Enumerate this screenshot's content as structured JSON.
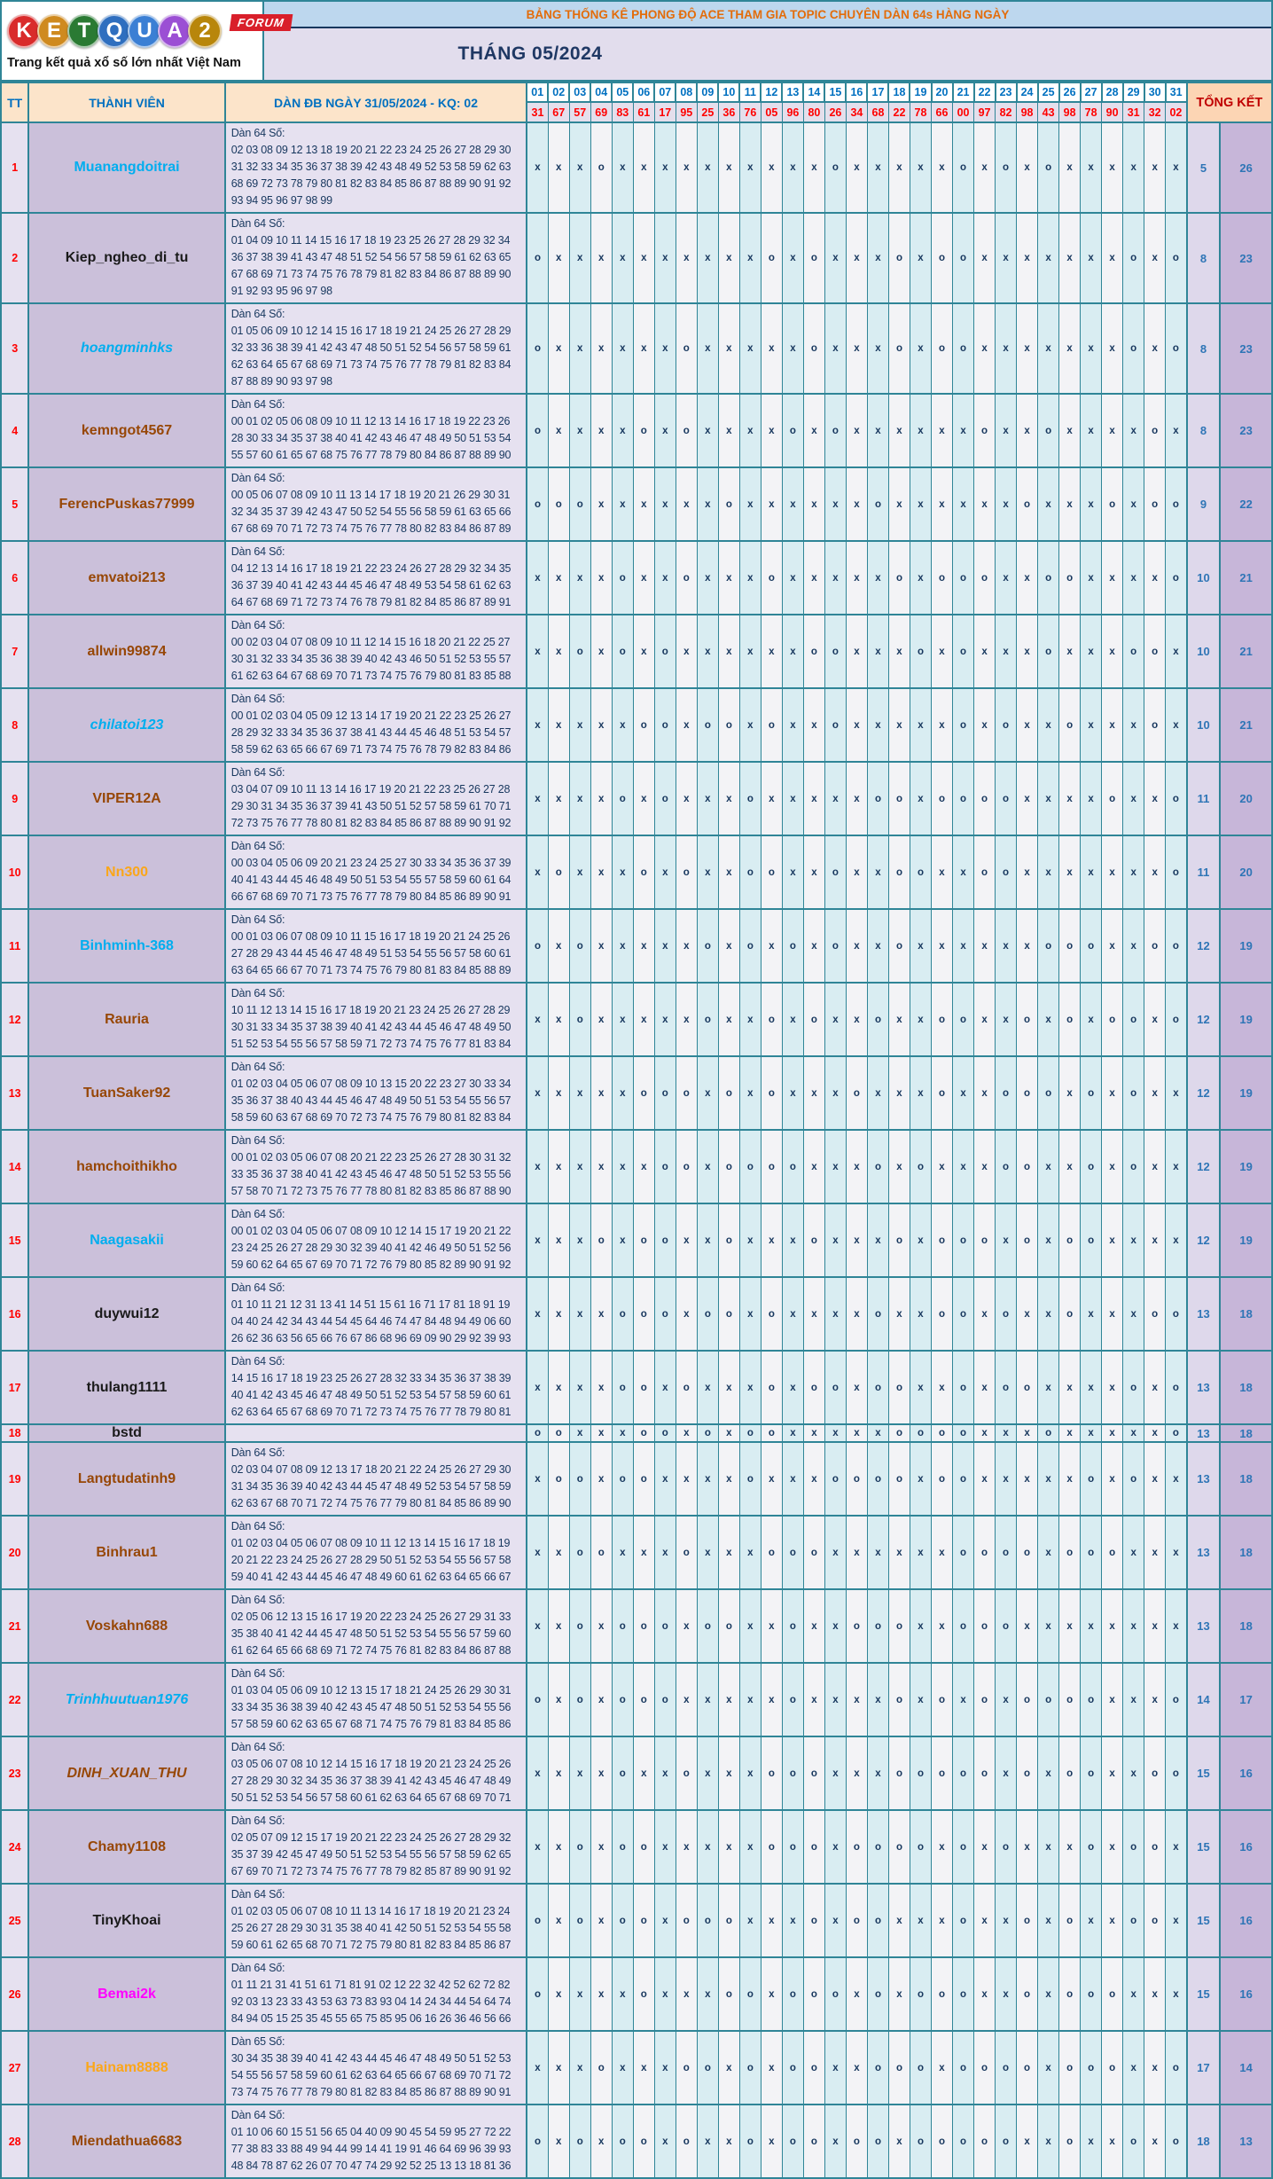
{
  "logo": {
    "letters": [
      "K",
      "E",
      "T",
      "Q",
      "U",
      "A",
      "2"
    ],
    "letter_colors": [
      "#d92b2b",
      "#cf8a1f",
      "#2a7a33",
      "#2f6fbf",
      "#3b7fd4",
      "#9b4fd4",
      "#b8860b"
    ],
    "forum_badge": "FORUM",
    "tagline": "Trang kết quả xổ số lớn nhất Việt Nam"
  },
  "header": {
    "banner": "BẢNG THỐNG KÊ PHONG ĐỘ ACE THAM GIA TOPIC CHUYÊN DÀN 64s HÀNG NGÀY",
    "month_title": "THÁNG 05/2024"
  },
  "columns": {
    "tt": "TT",
    "member": "THÀNH VIÊN",
    "dan": "DÀN ĐB NGÀY 31/05/2024 - KQ: 02",
    "total": "TỔNG KẾT"
  },
  "days": [
    "01",
    "02",
    "03",
    "04",
    "05",
    "06",
    "07",
    "08",
    "09",
    "10",
    "11",
    "12",
    "13",
    "14",
    "15",
    "16",
    "17",
    "18",
    "19",
    "20",
    "21",
    "22",
    "23",
    "24",
    "25",
    "26",
    "27",
    "28",
    "29",
    "30",
    "31"
  ],
  "results": [
    "31",
    "67",
    "57",
    "69",
    "83",
    "61",
    "17",
    "95",
    "25",
    "36",
    "76",
    "05",
    "96",
    "80",
    "26",
    "34",
    "68",
    "22",
    "78",
    "66",
    "00",
    "97",
    "82",
    "98",
    "43",
    "98",
    "78",
    "90",
    "31",
    "32",
    "02"
  ],
  "rows": [
    {
      "tt": "1",
      "member": "Muanangdoitrai",
      "style": "blue",
      "numbers": "Dàn 64 Số:\n02 03 08 09 12 13 18 19 20 21 22 23 24 25 26 27 28 29 30\n31 32 33 34 35 36 37 38 39 42 43 48 49 52 53 58 59 62 63\n68 69 72 73 78 79 80 81 82 83 84 85 86 87 88 89 90 91 92\n93 94 95 96 97 98 99",
      "marks": "xxxoxxxxxxxxxxoxxxxxoxoxoxxxxxx",
      "o": "5",
      "x": "26"
    },
    {
      "tt": "2",
      "member": "Kiep_ngheo_di_tu",
      "style": "black",
      "numbers": "Dàn 64 Số:\n01 04 09 10 11 14 15 16 17 18 19 23 25 26 27 28 29 32 34\n36 37 38 39 41 43 47 48 51 52 54 56 57 58 59 61 62 63 65\n67 68 69 71 73 74 75 76 78 79 81 82 83 84 86 87 88 89 90\n91 92 93 95 96 97 98",
      "marks": "oxxxxxxxxxxoxoxxxoxooxxxxxxxoxo",
      "o": "8",
      "x": "23"
    },
    {
      "tt": "3",
      "member": "hoangminhks",
      "style": "blue-italic",
      "numbers": "Dàn 64 Số:\n01 05 06 09 10 12 14 15 16 17 18 19 21 24 25 26 27 28 29\n32 33 36 38 39 41 42 43 47 48 50 51 52 54 56 57 58 59 61\n62 63 64 65 67 68 69 71 73 74 75 76 77 78 79 81 82 83 84\n87 88 89 90 93 97 98",
      "marks": "oxxxxxxoxxxxxoxxxoxooxxxxxxxoxo",
      "o": "8",
      "x": "23"
    },
    {
      "tt": "4",
      "member": "kemngot4567",
      "style": "brown",
      "numbers": "Dàn 64 Số:\n00 01 02 05 06 08 09 10 11 12 13 14 16 17 18 19 22 23 26\n28 30 33 34 35 37 38 40 41 42 43 46 47 48 49 50 51 53 54\n55 57 60 61 65 67 68 75 76 77 78 79 80 84 86 87 88 89 90",
      "marks": "oxxxxoxoxxxxoxoxxxxxxoxxoxxxxox",
      "o": "8",
      "x": "23"
    },
    {
      "tt": "5",
      "member": "FerencPuskas77999",
      "style": "brown",
      "numbers": "Dàn 64 Số:\n00 05 06 07 08 09 10 11 13 14 17 18 19 20 21 26 29 30 31\n32 34 35 37 39 42 43 47 50 52 54 55 56 58 59 61 63 65 66\n67 68 69 70 71 72 73 74 75 76 77 78 80 82 83 84 86 87 89",
      "marks": "oooxxxxxxoxxxxxxoxxxxxxoxxxoxoo",
      "o": "9",
      "x": "22"
    },
    {
      "tt": "6",
      "member": "emvatoi213",
      "style": "brown",
      "numbers": "Dàn 64 Số:\n04 12 13 14 16 17 18 19 21 22 23 24 26 27 28 29 32 34 35\n36 37 39 40 41 42 43 44 45 46 47 48 49 53 54 58 61 62 63\n64 67 68 69 71 72 73 74 76 78 79 81 82 84 85 86 87 89 91",
      "marks": "xxxxoxxoxxxoxxxxxoxoooxxooxxxxo",
      "o": "10",
      "x": "21"
    },
    {
      "tt": "7",
      "member": "allwin99874",
      "style": "brown",
      "numbers": "Dàn 64 Số:\n00 02 03 04 07 08 09 10 11 12 14 15 16 18 20 21 22 25 27\n30 31 32 33 34 35 36 38 39 40 42 43 46 50 51 52 53 55 57\n61 62 63 64 67 68 69 70 71 73 74 75 76 79 80 81 83 85 88",
      "marks": "xxoxoxoxxxxxxooxxxoxoxxxoxxxoox",
      "o": "10",
      "x": "21"
    },
    {
      "tt": "8",
      "member": "chilatoi123",
      "style": "blue-italic",
      "numbers": "Dàn 64 Số:\n00 01 02 03 04 05 09 12 13 14 17 19 20 21 22 23 25 26 27\n28 29 32 33 34 35 36 37 38 41 43 44 45 46 48 51 53 54 57\n58 59 62 63 65 66 67 69 71 73 74 75 76 78 79 82 83 84 86",
      "marks": "xxxxxooxooxoxxoxxxxxoxoxxoxxxox",
      "o": "10",
      "x": "21"
    },
    {
      "tt": "9",
      "member": "VIPER12A",
      "style": "brown",
      "numbers": "Dàn 64 Số:\n03 04 07 09 10 11 13 14 16 17 19 20 21 22 23 25 26 27 28\n29 30 31 34 35 36 37 39 41 43 50 51 52 57 58 59 61 70 71\n72 73 75 76 77 78 80 81 82 83 84 85 86 87 88 89 90 91 92",
      "marks": "xxxxoxoxxxoxxxxxooxooooxxxxoxxo",
      "o": "11",
      "x": "20"
    },
    {
      "tt": "10",
      "member": "Nn300",
      "style": "orange",
      "numbers": "Dàn 64 Số:\n00 03 04 05 06 09 20 21 23 24 25 27 30 33 34 35 36 37 39\n40 41 43 44 45 46 48 49 50 51 53 54 55 57 58 59 60 61 64\n66 67 68 69 70 71 73 75 76 77 78 79 80 84 85 86 89 90 91",
      "marks": "xoxxxoxoxxooxxoxxooxxooxxxxxxxo",
      "o": "11",
      "x": "20"
    },
    {
      "tt": "11",
      "member": "Binhminh-368",
      "style": "blue",
      "numbers": "Dàn 64 Số:\n00 01 03 06 07 08 09 10 11 15 16 17 18 19 20 21 24 25 26\n27 28 29 43 44 45 46 47 48 49 51 53 54 55 56 57 58 60 61\n63 64 65 66 67 70 71 73 74 75 76 79 80 81 83 84 85 88 89",
      "marks": "oxoxxxxxoxoxoxoxxoxxxxxxoooxxoo",
      "o": "12",
      "x": "19"
    },
    {
      "tt": "12",
      "member": "Rauria",
      "style": "brown",
      "numbers": "Dàn 64 Số:\n10 11 12 13 14 15 16 17 18 19 20 21 23 24 25 26 27 28 29\n30 31 33 34 35 37 38 39 40 41 42 43 44 45 46 47 48 49 50\n51 52 53 54 55 56 57 58 59 71 72 73 74 75 76 77 81 83 84",
      "marks": "xxoxxxxxoxxoxoxxoxxooxxoxoxooxo",
      "o": "12",
      "x": "19"
    },
    {
      "tt": "13",
      "member": "TuanSaker92",
      "style": "brown",
      "numbers": "Dàn 64 Số:\n01 02 03 04 05 06 07 08 09 10 13 15 20 22 23 27 30 33 34\n35 36 37 38 40 43 44 45 46 47 48 49 50 51 53 54 55 56 57\n58 59 60 63 67 68 69 70 72 73 74 75 76 79 80 81 82 83 84",
      "marks": "xxxxxoooxoxoxxxoxxxoxxoooxoxoxx",
      "o": "12",
      "x": "19"
    },
    {
      "tt": "14",
      "member": "hamchoithikho",
      "style": "brown",
      "numbers": "Dàn 64 Số:\n00 01 02 03 05 06 07 08 20 21 22 23 25 26 27 28 30 31 32\n33 35 36 37 38 40 41 42 43 45 46 47 48 50 51 52 53 55 56\n57 58 70 71 72 73 75 76 77 78 80 81 82 83 85 86 87 88 90",
      "marks": "xxxxxxooxooooxxxoxoxxxooxxoxoxx",
      "o": "12",
      "x": "19"
    },
    {
      "tt": "15",
      "member": "Naagasakii",
      "style": "blue",
      "numbers": "Dàn 64 Số:\n00 01 02 03 04 05 06 07 08 09 10 12 14 15 17 19 20 21 22\n23 24 25 26 27 28 29 30 32 39 40 41 42 46 49 50 51 52 56\n59 60 62 64 65 67 69 70 71 72 76 79 80 85 82 89 90 91 92",
      "marks": "xxxoxooxxoxxxoxxxoxoooxoxooxxxx",
      "o": "12",
      "x": "19"
    },
    {
      "tt": "16",
      "member": "duywui12",
      "style": "black",
      "numbers": "Dàn 64 Số:\n01 10 11 21 12 31 13 41 14 51 15 61 16 71 17 81 18 91 19\n04 40 24 42 34 43 44 54 45 64 46 74 47 84 48 94 49 06 60\n26 62 36 63 56 65 66 76 67 86 68 96 69 09 90 29 92 39 93",
      "marks": "xxxxoooxooxoxxxxoxxooxoxxoxxxoo",
      "o": "13",
      "x": "18"
    },
    {
      "tt": "17",
      "member": "thulang1111",
      "style": "black",
      "numbers": "Dàn 64 Số:\n14 15 16 17 18 19 23 25 26 27 28 32 33 34 35 36 37 38 39\n40 41 42 43 45 46 47 48 49 50 51 52 53 54 57 58 59 60 61\n62 63 64 65 67 68 69 70 71 72 73 74 75 76 77 78 79 80 81",
      "marks": "xxxxooxoxxxoxooxooxxoxooxxxxoxo",
      "o": "13",
      "x": "18"
    },
    {
      "tt": "18",
      "member": "bstd",
      "style": "black",
      "numbers": "",
      "marks": "ooxxxooxoxooxxxxxooooxxxoxxxxxo",
      "o": "13",
      "x": "18"
    },
    {
      "tt": "19",
      "member": "Langtudatinh9",
      "style": "brown",
      "numbers": "Dàn 64 Số:\n02 03 04 07 08 09 12 13 17 18 20 21 22 24 25 26 27 29 30\n31 34 35 36 39 40 42 43 44 45 47 48 49 52 53 54 57 58 59\n62 63 67 68 70 71 72 74 75 76 77 79 80 81 84 85 86 89 90",
      "marks": "xooxooxxxxoxxxooooxooxxxxxoxoxx",
      "o": "13",
      "x": "18"
    },
    {
      "tt": "20",
      "member": "Binhrau1",
      "style": "brown",
      "numbers": "Dàn 64 Số:\n01 02 03 04 05 06 07 08 09 10 11 12 13 14 15 16 17 18 19\n20 21 22 23 24 25 26 27 28 29 50 51 52 53 54 55 56 57 58\n59 40 41 42 43 44 45 46 47 48 49 60 61 62 63 64 65 66 67",
      "marks": "xxooxxxoxxxoooxxxxxxooooxoooxxx",
      "o": "13",
      "x": "18"
    },
    {
      "tt": "21",
      "member": "Voskahn688",
      "style": "brown",
      "numbers": "Dàn 64 Số:\n02 05 06 12 13 15 16 17 19 20 22 23 24 25 26 27 29 31 33\n35 38 40 41 42 44 45 47 48 50 51 52 53 54 55 56 57 59 60\n61 62 64 65 66 68 69 71 72 74 75 76 81 82 83 84 86 87 88",
      "marks": "xxoxoooxooxxoxxoooxxoooxxxxxxxx",
      "o": "13",
      "x": "18"
    },
    {
      "tt": "22",
      "member": "Trinhhuutuan1976",
      "style": "blue-italic",
      "numbers": "Dàn 64 Số:\n01 03 04 05 06 09 10 12 13 15 17 18 21 24 25 26 29 30 31\n33 34 35 36 38 39 40 42 43 45 47 48 50 51 52 53 54 55 56\n57 58 59 60 62 63 65 67 68 71 74 75 76 79 81 83 84 85 86",
      "marks": "oxoxoooxxxxxoxxxxoxoxoxooooxxxo",
      "o": "14",
      "x": "17"
    },
    {
      "tt": "23",
      "member": "DINH_XUAN_THU",
      "style": "brown-italic",
      "numbers": "Dàn 64 Số:\n03 05 06 07 08 10 12 14 15 16 17 18 19 20 21 23 24 25 26\n27 28 29 30 32 34 35 36 37 38 39 41 42 43 45 46 47 48 49\n50 51 52 53 54 56 57 58 60 61 62 63 64 65 67 68 69 70 71",
      "marks": "xxxxoxxoxxxoooxxxooooox oxooxxoo",
      "o": "15",
      "x": "16"
    },
    {
      "tt": "24",
      "member": "Chamy1108",
      "style": "brown",
      "numbers": "Dàn 64 Số:\n02 05 07 09 12 15 17 19 20 21 22 23 24 25 26 27 28 29 32\n35 37 39 42 45 47 49 50 51 52 53 54 55 56 57 58 59 62 65\n67 69 70 71 72 73 74 75 76 77 78 79 82 85 87 89 90 91 92",
      "marks": "xxoxooxxxxxoooxooooxoxoxxxoxoox",
      "o": "15",
      "x": "16"
    },
    {
      "tt": "25",
      "member": "TinyKhoai",
      "style": "black",
      "numbers": "Dàn 64 Số:\n01 02 03 05 06 07 08 10 11 13 14 16 17 18 19 20 21 23 24\n25 26 27 28 29 30 31 35 38 40 41 42 50 51 52 53 54 55 58\n59 60 61 62 65 68 70 71 72 75 79 80 81 82 83 84 85 86 87",
      "marks": "oxoxooxoooxxxoxooxxxoxxoxoxxoox",
      "o": "15",
      "x": "16"
    },
    {
      "tt": "26",
      "member": "Bemai2k",
      "style": "magenta",
      "numbers": "Dàn 64 Số:\n01 11 21 31 41 51 61 71 81 91 02 12 22 32 42 52 62 72 82\n92 03 13 23 33 43 53 63 73 83 93 04 14 24 34 44 54 64 74\n84 94 05 15 25 35 45 55 65 75 85 95 06 16 26 36 46 56 66",
      "marks": "oxxxxoxxxooxoooxoxoooxxoxoooxxx",
      "o": "15",
      "x": "16"
    },
    {
      "tt": "27",
      "member": "Hainam8888",
      "style": "orange",
      "numbers": "Dàn 65 Số:\n30 34 35 38 39 40 41 42 43 44 45 46 47 48 49 50 51 52 53\n54 55 56 57 58 59 60 61 62 63 64 65 66 67 68 69 70 71 72\n73 74 75 76 77 78 79 80 81 82 83 84 85 86 87 88 89 90 91",
      "marks": "xxxoxxxooxoxooxxoooxooooxoooxxo",
      "o": "17",
      "x": "14"
    },
    {
      "tt": "28",
      "member": "Miendathua6683",
      "style": "brown",
      "numbers": "Dàn 64 Số:\n01 10 06 60 15 51 56 65 04 40 09 90 45 54 59 95 27 72 22\n77 38 83 33 88 49 94 44 99 14 41 19 91 46 64 69 96 39 93\n48 84 78 87 62 26 07 70 47 74 29 92 52 25 13 13 18 81 36",
      "marks": "oxoxooxoxxoxooxooxoooooxxoxxoxo",
      "o": "18",
      "x": "13"
    }
  ]
}
